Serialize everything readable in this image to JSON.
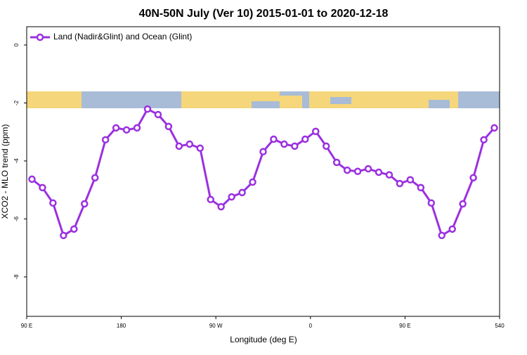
{
  "chart_data": {
    "type": "line",
    "title": "40N-50N July (Ver 10)   2015-01-01 to 2020-12-18",
    "x_label": "Longitude (deg E)",
    "y_label": "XCO2 - MLO trend (ppm)",
    "xlim": [
      90,
      540
    ],
    "ylim": [
      -9.36,
      0.63
    ],
    "xticks": [
      {
        "value": 90,
        "label": "90 E"
      },
      180,
      {
        "value": 270,
        "label": "90 W"
      },
      {
        "value": 360,
        "label": "0"
      },
      {
        "value": 450,
        "label": "90 E"
      },
      540
    ],
    "yticks": [
      0,
      -2,
      -4,
      -6,
      -8
    ],
    "legend": "top-left",
    "series": [
      {
        "name": "Land (Nadir&Glint) and Ocean (Glint)",
        "color": "#9b30e0",
        "x": [
          95,
          105,
          115,
          125,
          135,
          145,
          155,
          165,
          175,
          185,
          195,
          205,
          215,
          225,
          235,
          245,
          255,
          265,
          275,
          285,
          295,
          305,
          315,
          325,
          335,
          345,
          355,
          365,
          375,
          385,
          395,
          405,
          415,
          425,
          435,
          445,
          455,
          465,
          475,
          485,
          495,
          505,
          515,
          525,
          535
        ],
        "values": [
          -4.63,
          -4.92,
          -5.45,
          -6.57,
          -6.35,
          -5.48,
          -4.58,
          -3.27,
          -2.86,
          -2.93,
          -2.86,
          -2.21,
          -2.4,
          -2.81,
          -3.49,
          -3.42,
          -3.56,
          -5.33,
          -5.58,
          -5.24,
          -5.09,
          -4.73,
          -3.68,
          -3.25,
          -3.42,
          -3.49,
          -3.25,
          -2.98,
          -3.49,
          -4.05,
          -4.32,
          -4.36,
          -4.27,
          -4.39,
          -4.48,
          -4.78,
          -4.65,
          -4.92,
          -5.45,
          -6.57,
          -6.35,
          -5.48,
          -4.58,
          -3.27,
          -2.86
        ]
      }
    ]
  }
}
